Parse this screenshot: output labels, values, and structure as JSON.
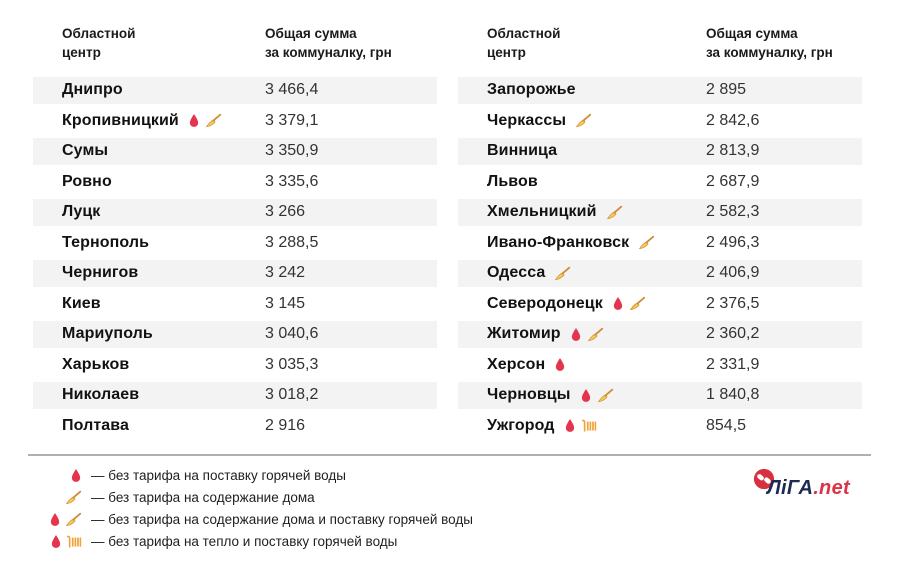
{
  "table_header": {
    "city_line1": "Областной",
    "city_line2": "центр",
    "sum_line1": "Общая сумма",
    "sum_line2": "за коммуналку, грн"
  },
  "tables": [
    {
      "id": "left",
      "rows": [
        {
          "city": "Днипро",
          "icons": [],
          "value": "3 466,4"
        },
        {
          "city": "Кропивницкий",
          "icons": [
            "droplet",
            "broom"
          ],
          "value": "3 379,1"
        },
        {
          "city": "Сумы",
          "icons": [],
          "value": "3 350,9"
        },
        {
          "city": "Ровно",
          "icons": [],
          "value": "3 335,6"
        },
        {
          "city": "Луцк",
          "icons": [],
          "value": "3 266"
        },
        {
          "city": "Тернополь",
          "icons": [],
          "value": "3 288,5"
        },
        {
          "city": "Чернигов",
          "icons": [],
          "value": "3 242"
        },
        {
          "city": "Киев",
          "icons": [],
          "value": "3 145"
        },
        {
          "city": "Мариуполь",
          "icons": [],
          "value": "3 040,6"
        },
        {
          "city": "Харьков",
          "icons": [],
          "value": "3 035,3"
        },
        {
          "city": "Николаев",
          "icons": [],
          "value": "3 018,2"
        },
        {
          "city": "Полтава",
          "icons": [],
          "value": "2 916"
        }
      ]
    },
    {
      "id": "right",
      "rows": [
        {
          "city": "Запорожье",
          "icons": [],
          "value": "2 895"
        },
        {
          "city": "Черкассы",
          "icons": [
            "broom"
          ],
          "value": "2 842,6"
        },
        {
          "city": "Винница",
          "icons": [],
          "value": "2 813,9"
        },
        {
          "city": "Львов",
          "icons": [],
          "value": "2 687,9"
        },
        {
          "city": "Хмельницкий",
          "icons": [
            "broom"
          ],
          "value": "2 582,3"
        },
        {
          "city": "Ивано-Франковск",
          "icons": [
            "broom"
          ],
          "value": "2 496,3"
        },
        {
          "city": "Одесса",
          "icons": [
            "broom"
          ],
          "value": "2 406,9"
        },
        {
          "city": "Северодонецк",
          "icons": [
            "droplet",
            "broom"
          ],
          "value": "2 376,5"
        },
        {
          "city": "Житомир",
          "icons": [
            "droplet",
            "broom"
          ],
          "value": "2 360,2"
        },
        {
          "city": "Херсон",
          "icons": [
            "droplet"
          ],
          "value": "2 331,9"
        },
        {
          "city": "Черновцы",
          "icons": [
            "droplet",
            "broom"
          ],
          "value": "1 840,8"
        },
        {
          "city": "Ужгород",
          "icons": [
            "droplet",
            "radiator"
          ],
          "value": "854,5"
        }
      ]
    }
  ],
  "legend": {
    "items": [
      {
        "icons": [
          "droplet"
        ],
        "text": "— без тарифа на поставку горячей воды"
      },
      {
        "icons": [
          "broom"
        ],
        "text": "— без тарифа на содержание дома"
      },
      {
        "icons": [
          "droplet",
          "broom"
        ],
        "text": "— без тарифа на содержание дома и поставку горячей воды"
      },
      {
        "icons": [
          "droplet",
          "radiator"
        ],
        "text": "— без тарифа на тепло и поставку горячей воды"
      }
    ]
  },
  "logo": {
    "text_main": "ЛіГА",
    "text_suffix": ".net"
  },
  "colors": {
    "stripe": "#f3f3f3",
    "droplet": "#e5344e",
    "broom_handle": "#d08c3a",
    "broom_bristles": "#f5ce52",
    "radiator": "#f1a33b",
    "divider": "#b0b0b0",
    "logo_navy": "#1e2a4f",
    "logo_red": "#dd3347"
  },
  "chart_data": {
    "type": "table",
    "columns": [
      "Областной центр",
      "Общая сумма за коммуналку, грн"
    ],
    "rows_left": [
      [
        "Днипро",
        3466.4
      ],
      [
        "Кропивницкий",
        3379.1
      ],
      [
        "Сумы",
        3350.9
      ],
      [
        "Ровно",
        3335.6
      ],
      [
        "Луцк",
        3266
      ],
      [
        "Тернополь",
        3288.5
      ],
      [
        "Чернигов",
        3242
      ],
      [
        "Киев",
        3145
      ],
      [
        "Мариуполь",
        3040.6
      ],
      [
        "Харьков",
        3035.3
      ],
      [
        "Николаев",
        3018.2
      ],
      [
        "Полтава",
        2916
      ]
    ],
    "rows_right": [
      [
        "Запорожье",
        2895
      ],
      [
        "Черкассы",
        2842.6
      ],
      [
        "Винница",
        2813.9
      ],
      [
        "Львов",
        2687.9
      ],
      [
        "Хмельницкий",
        2582.3
      ],
      [
        "Ивано-Франковск",
        2496.3
      ],
      [
        "Одесса",
        2406.9
      ],
      [
        "Северодонецк",
        2376.5
      ],
      [
        "Житомир",
        2360.2
      ],
      [
        "Херсон",
        2331.9
      ],
      [
        "Черновцы",
        1840.8
      ],
      [
        "Ужгород",
        854.5
      ]
    ],
    "icon_flags": {
      "droplet": "без тарифа на поставку горячей воды",
      "broom": "без тарифа на содержание дома",
      "droplet+broom": "без тарифа на содержание дома и поставку горячей воды",
      "droplet+radiator": "без тарифа на тепло и поставку горячей воды"
    },
    "cities_with_flags": {
      "Кропивницкий": [
        "droplet",
        "broom"
      ],
      "Черкассы": [
        "broom"
      ],
      "Хмельницкий": [
        "broom"
      ],
      "Ивано-Франковск": [
        "broom"
      ],
      "Одесса": [
        "broom"
      ],
      "Северодонецк": [
        "droplet",
        "broom"
      ],
      "Житомир": [
        "droplet",
        "broom"
      ],
      "Херсон": [
        "droplet"
      ],
      "Черновцы": [
        "droplet",
        "broom"
      ],
      "Ужгород": [
        "droplet",
        "radiator"
      ]
    }
  }
}
